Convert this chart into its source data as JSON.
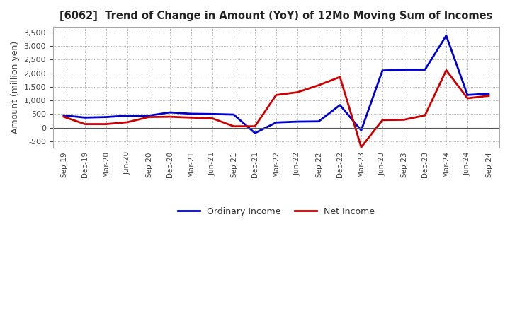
{
  "title": "[6062]  Trend of Change in Amount (YoY) of 12Mo Moving Sum of Incomes",
  "ylabel": "Amount (million yen)",
  "x_labels": [
    "Sep-19",
    "Dec-19",
    "Mar-20",
    "Jun-20",
    "Sep-20",
    "Dec-20",
    "Mar-21",
    "Jun-21",
    "Sep-21",
    "Dec-21",
    "Mar-22",
    "Jun-22",
    "Sep-22",
    "Dec-22",
    "Mar-23",
    "Jun-23",
    "Sep-23",
    "Dec-23",
    "Mar-24",
    "Jun-24",
    "Sep-24"
  ],
  "ordinary_income": [
    450,
    370,
    390,
    440,
    440,
    560,
    510,
    500,
    480,
    -200,
    190,
    220,
    230,
    830,
    -100,
    2100,
    2130,
    2130,
    3380,
    1200,
    1250
  ],
  "net_income": [
    400,
    130,
    130,
    200,
    390,
    400,
    370,
    340,
    50,
    50,
    1200,
    1300,
    1560,
    1860,
    -720,
    280,
    290,
    450,
    2110,
    1080,
    1170
  ],
  "ordinary_color": "#0000cc",
  "net_color": "#cc0000",
  "ylim": [
    -750,
    3700
  ],
  "yticks": [
    -500,
    0,
    500,
    1000,
    1500,
    2000,
    2500,
    3000,
    3500
  ],
  "bg_color": "#ffffff",
  "grid_color": "#999999",
  "legend_labels": [
    "Ordinary Income",
    "Net Income"
  ]
}
